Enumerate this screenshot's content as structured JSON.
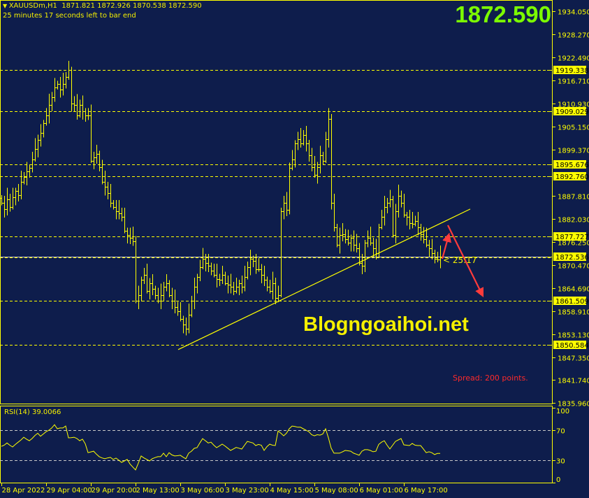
{
  "header": {
    "symbol": "XAUUSDm,H1",
    "ohlc": "1871.821 1872.926 1870.538 1872.590",
    "timer": "25 minutes 17 seconds left to bar end",
    "expand_icon": "triangle-down-icon"
  },
  "current_price": "1872.590",
  "watermark": "Blogngoaihoi.net",
  "spread": "Spread: 200 points.",
  "countdown": "< 25:17",
  "colors": {
    "background": "#0e1d4c",
    "bars": "#ffff00",
    "price_big": "#7cfc00",
    "arrows": "#ff3b3b",
    "bid_line": "#c8c8c8"
  },
  "chart_data": {
    "type": "ohlc",
    "symbol": "XAUUSDm",
    "timeframe": "H1",
    "ylim": [
      1835.96,
      1934.05
    ],
    "closes": [
      1886.0,
      1884.5,
      1887,
      1885,
      1887.5,
      1889,
      1888,
      1891.3,
      1892.5,
      1894,
      1894.8,
      1897,
      1899.5,
      1901.8,
      1903.5,
      1906,
      1908,
      1910.6,
      1912.5,
      1915,
      1915.8,
      1914.5,
      1915.8,
      1917.5,
      1919.3,
      1911,
      1910.5,
      1908,
      1910.6,
      1909,
      1908,
      1907.9,
      1896.6,
      1897.5,
      1898.3,
      1895,
      1891.3,
      1890,
      1888.5,
      1886,
      1885,
      1884,
      1883.5,
      1882.5,
      1879,
      1878,
      1877.3,
      1876.4,
      1861.5,
      1863,
      1866.8,
      1868,
      1864,
      1865.9,
      1864.5,
      1863,
      1861.5,
      1863,
      1865,
      1865.9,
      1863,
      1861.5,
      1860,
      1858.9,
      1857,
      1855.5,
      1854.5,
      1858,
      1861.5,
      1865,
      1867.5,
      1870,
      1872,
      1871,
      1870.3,
      1869,
      1868,
      1867,
      1866.8,
      1868,
      1866,
      1865.5,
      1865,
      1864,
      1865,
      1866,
      1865,
      1867.5,
      1870,
      1872,
      1871.5,
      1869.4,
      1869.4,
      1868,
      1866.8,
      1865,
      1864,
      1866,
      1862.3,
      1863,
      1884,
      1886,
      1884.3,
      1894.8,
      1897,
      1900.9,
      1902,
      1901,
      1903,
      1901,
      1898,
      1895,
      1893,
      1895,
      1898,
      1896.6,
      1902,
      1907,
      1886,
      1880,
      1875.5,
      1878,
      1878.2,
      1877,
      1876,
      1877.3,
      1875.5,
      1874.7,
      1871,
      1870.3,
      1876,
      1877.3,
      1876,
      1874.7,
      1873.5,
      1880,
      1882.5,
      1885,
      1886,
      1887,
      1878,
      1884,
      1887.8,
      1886,
      1883,
      1882.5,
      1881,
      1880.8,
      1881.5,
      1880,
      1878.2,
      1877,
      1875.5,
      1874.7,
      1873.5,
      1872,
      1871.8,
      1872.59
    ],
    "price_axis": {
      "ticks": [
        "1934.050",
        "1928.270",
        "1922.490",
        "1916.710",
        "1910.930",
        "1905.150",
        "1899.370",
        "1887.810",
        "1882.030",
        "1876.250",
        "1870.470",
        "1864.690",
        "1858.910",
        "1853.130",
        "1847.350",
        "1841.740",
        "1835.960"
      ]
    },
    "levels": [
      "1919.338",
      "1909.029",
      "1895.676",
      "1892.760",
      "1877.727",
      "1861.509",
      "1850.584"
    ],
    "bid_level": "1872.536",
    "trendline": {
      "from_price": 1849.3,
      "to_price": 1884.5
    },
    "time_axis": [
      "28 Apr 2022",
      "29 Apr 04:00",
      "29 Apr 20:00",
      "2 May 13:00",
      "3 May 06:00",
      "3 May 23:00",
      "4 May 15:00",
      "5 May 08:00",
      "6 May 01:00",
      "6 May 17:00"
    ],
    "rsi": {
      "label": "RSI(14) 39.0066",
      "levels": [
        "70",
        "30"
      ],
      "axis": [
        "100",
        "70",
        "30",
        "0"
      ],
      "ylim": [
        0,
        100
      ],
      "values": [
        48.5,
        50,
        53,
        50,
        47.7,
        51,
        54,
        57,
        60.7,
        58,
        56,
        59,
        63,
        66,
        62,
        65,
        68,
        70,
        73,
        77.4,
        72,
        73,
        73,
        75.6,
        59.8,
        60,
        60.7,
        59,
        56,
        58,
        52,
        40,
        41,
        42,
        38,
        34.7,
        33,
        31.9,
        33,
        33.7,
        30.9,
        32.8,
        30,
        27,
        29,
        31,
        25,
        20.8,
        17,
        26,
        35.6,
        33,
        31,
        29,
        32,
        33.5,
        34.7,
        34.7,
        39.3,
        34.7,
        40,
        37,
        35.6,
        36,
        36.5,
        34,
        31.9,
        39.3,
        42,
        45.8,
        46.7,
        53,
        58.8,
        56,
        53,
        54,
        50,
        46.7,
        49,
        51.4,
        49,
        46,
        43,
        45,
        47,
        46,
        44.9,
        50,
        55,
        54,
        53,
        49.5,
        51,
        50,
        43,
        48,
        51.4,
        50,
        49.5,
        69,
        66,
        62.5,
        66,
        72,
        75.6,
        75,
        74,
        74,
        72,
        70,
        68,
        64,
        62.5,
        64,
        63.5,
        65,
        72,
        60,
        46,
        39.3,
        39.3,
        39.3,
        41,
        43,
        42.5,
        42,
        39.3,
        38,
        36.5,
        42,
        44,
        44,
        43,
        41.2,
        42,
        51,
        54,
        56,
        50,
        45,
        50,
        55,
        57,
        58.8,
        50.5,
        50,
        49.5,
        52.3,
        50,
        49.5,
        49.5,
        45,
        40,
        41.2,
        40,
        37.5,
        39,
        39.0066
      ]
    }
  }
}
